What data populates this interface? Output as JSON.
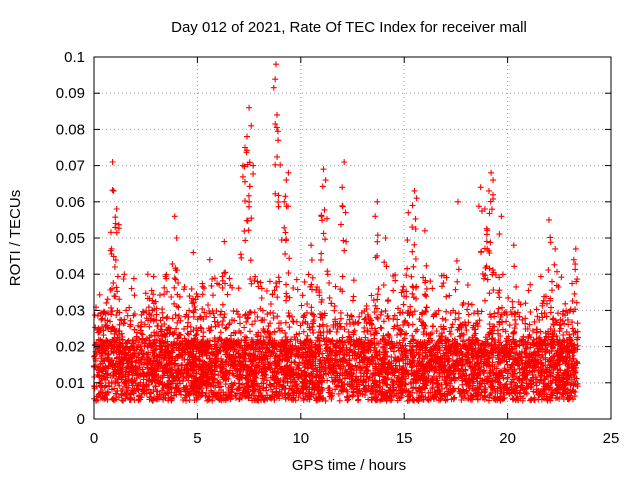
{
  "chart_data": {
    "type": "scatter",
    "title": "Day 012 of 2021, Rate Of TEC Index for receiver mall",
    "xlabel": "GPS time / hours",
    "ylabel": "ROTI / TECUs",
    "xlim": [
      0,
      25
    ],
    "ylim": [
      0,
      0.1
    ],
    "xticks": [
      0,
      5,
      10,
      15,
      20,
      25
    ],
    "yticks": [
      0,
      0.01,
      0.02,
      0.03,
      0.04,
      0.05,
      0.06,
      0.07,
      0.08,
      0.09,
      0.1
    ],
    "xtick_labels": [
      "0",
      "5",
      "10",
      "15",
      "20",
      "25"
    ],
    "ytick_labels": [
      "0",
      "0.01",
      "0.02",
      "0.03",
      "0.04",
      "0.05",
      "0.06",
      "0.07",
      "0.08",
      "0.09",
      "0.1"
    ],
    "grid": true,
    "marker": "+",
    "color": "#ff0000",
    "data_x_range": [
      0,
      23.4
    ],
    "series": [
      {
        "name": "ROTI",
        "density": "dense band 0.005–0.03 TECU, sampled across 0–23.4 h",
        "peaks": [
          {
            "x": 0.9,
            "y": 0.071
          },
          {
            "x": 0.95,
            "y": 0.063
          },
          {
            "x": 1.1,
            "y": 0.058
          },
          {
            "x": 0.85,
            "y": 0.047
          },
          {
            "x": 1.05,
            "y": 0.054
          },
          {
            "x": 3.9,
            "y": 0.056
          },
          {
            "x": 4.0,
            "y": 0.05
          },
          {
            "x": 7.5,
            "y": 0.086
          },
          {
            "x": 7.6,
            "y": 0.081
          },
          {
            "x": 7.4,
            "y": 0.078
          },
          {
            "x": 7.3,
            "y": 0.075
          },
          {
            "x": 7.2,
            "y": 0.07
          },
          {
            "x": 7.5,
            "y": 0.06
          },
          {
            "x": 8.8,
            "y": 0.098
          },
          {
            "x": 8.85,
            "y": 0.084
          },
          {
            "x": 8.9,
            "y": 0.077
          },
          {
            "x": 9.4,
            "y": 0.068
          },
          {
            "x": 9.3,
            "y": 0.066
          },
          {
            "x": 9.2,
            "y": 0.06
          },
          {
            "x": 11.1,
            "y": 0.069
          },
          {
            "x": 11.2,
            "y": 0.066
          },
          {
            "x": 11.0,
            "y": 0.056
          },
          {
            "x": 12.1,
            "y": 0.071
          },
          {
            "x": 12.0,
            "y": 0.064
          },
          {
            "x": 13.7,
            "y": 0.06
          },
          {
            "x": 13.6,
            "y": 0.056
          },
          {
            "x": 15.5,
            "y": 0.063
          },
          {
            "x": 15.6,
            "y": 0.061
          },
          {
            "x": 15.4,
            "y": 0.059
          },
          {
            "x": 15.2,
            "y": 0.057
          },
          {
            "x": 17.6,
            "y": 0.06
          },
          {
            "x": 18.7,
            "y": 0.064
          },
          {
            "x": 19.2,
            "y": 0.068
          },
          {
            "x": 19.3,
            "y": 0.066
          },
          {
            "x": 19.1,
            "y": 0.063
          },
          {
            "x": 18.9,
            "y": 0.058
          },
          {
            "x": 19.0,
            "y": 0.051
          },
          {
            "x": 19.7,
            "y": 0.056
          },
          {
            "x": 22.0,
            "y": 0.055
          },
          {
            "x": 22.3,
            "y": 0.047
          },
          {
            "x": 23.3,
            "y": 0.047
          },
          {
            "x": 23.2,
            "y": 0.044
          },
          {
            "x": 20.3,
            "y": 0.048
          },
          {
            "x": 16.0,
            "y": 0.052
          },
          {
            "x": 14.1,
            "y": 0.05
          },
          {
            "x": 10.5,
            "y": 0.048
          },
          {
            "x": 6.3,
            "y": 0.049
          },
          {
            "x": 5.6,
            "y": 0.044
          },
          {
            "x": 2.6,
            "y": 0.04
          },
          {
            "x": 4.8,
            "y": 0.046
          }
        ]
      }
    ]
  }
}
